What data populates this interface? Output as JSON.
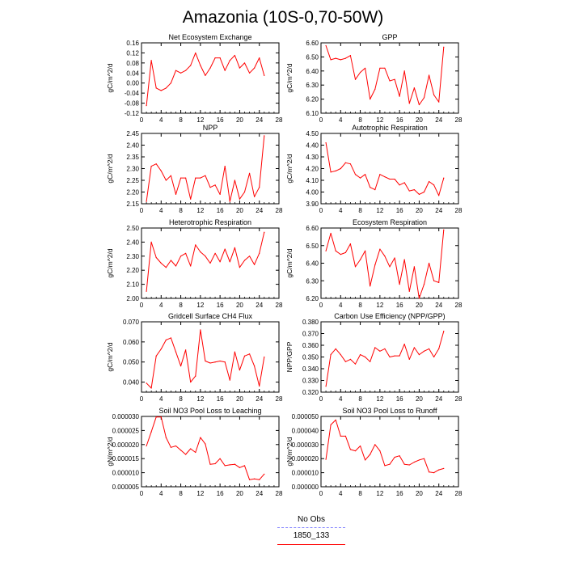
{
  "figure": {
    "title": "Amazonia (10S-0,70-50W)"
  },
  "legend": {
    "entries": [
      {
        "label": "No Obs",
        "color": "#8c8cff",
        "style": "dashed"
      },
      {
        "label": "1850_133",
        "color": "#ff0000",
        "style": "solid"
      }
    ]
  },
  "colors": {
    "series": "#ff0000",
    "axis": "#000000"
  },
  "chart_data": [
    {
      "type": "line",
      "title": "Net Ecosystem Exchange",
      "ylabel": "gC/m^2/d",
      "xlim": [
        0,
        28
      ],
      "ylim": [
        -0.12,
        0.16
      ],
      "xticks": [
        "0",
        "4",
        "8",
        "12",
        "16",
        "20",
        "24",
        "28"
      ],
      "yticks": [
        "-0.12",
        "-0.08",
        "-0.04",
        "0.00",
        "0.04",
        "0.08",
        "0.12",
        "0.16"
      ],
      "ytick_values": [
        -0.12,
        -0.08,
        -0.04,
        0.0,
        0.04,
        0.08,
        0.12,
        0.16
      ],
      "x": [
        1,
        2,
        3,
        4,
        5,
        6,
        7,
        8,
        9,
        10,
        11,
        12,
        13,
        14,
        15,
        16,
        17,
        18,
        19,
        20,
        21,
        22,
        23,
        24,
        25
      ],
      "series": [
        {
          "name": "1850_133",
          "values": [
            -0.09,
            0.09,
            -0.02,
            -0.03,
            -0.02,
            0.0,
            0.05,
            0.04,
            0.05,
            0.07,
            0.12,
            0.07,
            0.03,
            0.06,
            0.1,
            0.1,
            0.05,
            0.09,
            0.11,
            0.06,
            0.08,
            0.04,
            0.06,
            0.1,
            0.03
          ]
        }
      ]
    },
    {
      "type": "line",
      "title": "GPP",
      "ylabel": "gC/m^2/d",
      "xlim": [
        0,
        28
      ],
      "ylim": [
        6.1,
        6.6
      ],
      "xticks": [
        "0",
        "4",
        "8",
        "12",
        "16",
        "20",
        "24",
        "28"
      ],
      "yticks": [
        "6.10",
        "6.20",
        "6.30",
        "6.40",
        "6.50",
        "6.60"
      ],
      "ytick_values": [
        6.1,
        6.2,
        6.3,
        6.4,
        6.5,
        6.6
      ],
      "x": [
        1,
        2,
        3,
        4,
        5,
        6,
        7,
        8,
        9,
        10,
        11,
        12,
        13,
        14,
        15,
        16,
        17,
        18,
        19,
        20,
        21,
        22,
        23,
        24,
        25
      ],
      "series": [
        {
          "name": "1850_133",
          "values": [
            6.58,
            6.48,
            6.49,
            6.48,
            6.49,
            6.51,
            6.34,
            6.39,
            6.42,
            6.2,
            6.27,
            6.42,
            6.42,
            6.33,
            6.34,
            6.22,
            6.4,
            6.17,
            6.28,
            6.16,
            6.21,
            6.37,
            6.23,
            6.18,
            6.57
          ]
        }
      ]
    },
    {
      "type": "line",
      "title": "NPP",
      "ylabel": "gC/m^2/d",
      "xlim": [
        0,
        28
      ],
      "ylim": [
        2.15,
        2.45
      ],
      "xticks": [
        "0",
        "4",
        "8",
        "12",
        "16",
        "20",
        "24",
        "28"
      ],
      "yticks": [
        "2.15",
        "2.20",
        "2.25",
        "2.30",
        "2.35",
        "2.40",
        "2.45"
      ],
      "ytick_values": [
        2.15,
        2.2,
        2.25,
        2.3,
        2.35,
        2.4,
        2.45
      ],
      "x": [
        1,
        2,
        3,
        4,
        5,
        6,
        7,
        8,
        9,
        10,
        11,
        12,
        13,
        14,
        15,
        16,
        17,
        18,
        19,
        20,
        21,
        22,
        23,
        24,
        25
      ],
      "series": [
        {
          "name": "1850_133",
          "values": [
            2.16,
            2.31,
            2.32,
            2.29,
            2.25,
            2.27,
            2.19,
            2.26,
            2.26,
            2.17,
            2.26,
            2.26,
            2.27,
            2.22,
            2.23,
            2.19,
            2.31,
            2.16,
            2.25,
            2.17,
            2.2,
            2.28,
            2.18,
            2.22,
            2.44
          ]
        }
      ]
    },
    {
      "type": "line",
      "title": "Autotrophic Respiration",
      "ylabel": "gC/m^2/d",
      "xlim": [
        0,
        28
      ],
      "ylim": [
        3.9,
        4.5
      ],
      "xticks": [
        "0",
        "4",
        "8",
        "12",
        "16",
        "20",
        "24",
        "28"
      ],
      "yticks": [
        "3.90",
        "4.00",
        "4.10",
        "4.20",
        "4.30",
        "4.40",
        "4.50"
      ],
      "ytick_values": [
        3.9,
        4.0,
        4.1,
        4.2,
        4.3,
        4.4,
        4.5
      ],
      "x": [
        1,
        2,
        3,
        4,
        5,
        6,
        7,
        8,
        9,
        10,
        11,
        12,
        13,
        14,
        15,
        16,
        17,
        18,
        19,
        20,
        21,
        22,
        23,
        24,
        25
      ],
      "series": [
        {
          "name": "1850_133",
          "values": [
            4.42,
            4.17,
            4.18,
            4.2,
            4.25,
            4.24,
            4.15,
            4.12,
            4.15,
            4.04,
            4.02,
            4.15,
            4.13,
            4.11,
            4.11,
            4.06,
            4.08,
            4.01,
            4.02,
            3.98,
            4.0,
            4.09,
            4.06,
            3.97,
            4.12
          ]
        }
      ]
    },
    {
      "type": "line",
      "title": "Heterotrophic Respiration",
      "ylabel": "gC/m^2/d",
      "xlim": [
        0,
        28
      ],
      "ylim": [
        2.0,
        2.5
      ],
      "xticks": [
        "0",
        "4",
        "8",
        "12",
        "16",
        "20",
        "24",
        "28"
      ],
      "yticks": [
        "2.00",
        "2.10",
        "2.20",
        "2.30",
        "2.40",
        "2.50"
      ],
      "ytick_values": [
        2.0,
        2.1,
        2.2,
        2.3,
        2.4,
        2.5
      ],
      "x": [
        1,
        2,
        3,
        4,
        5,
        6,
        7,
        8,
        9,
        10,
        11,
        12,
        13,
        14,
        15,
        16,
        17,
        18,
        19,
        20,
        21,
        22,
        23,
        24,
        25
      ],
      "series": [
        {
          "name": "1850_133",
          "values": [
            2.05,
            2.4,
            2.29,
            2.25,
            2.22,
            2.27,
            2.23,
            2.3,
            2.32,
            2.23,
            2.38,
            2.33,
            2.3,
            2.25,
            2.32,
            2.26,
            2.35,
            2.26,
            2.36,
            2.22,
            2.27,
            2.3,
            2.24,
            2.32,
            2.47
          ]
        }
      ]
    },
    {
      "type": "line",
      "title": "Ecosystem Respiration",
      "ylabel": "gC/m^2/d",
      "xlim": [
        0,
        28
      ],
      "ylim": [
        6.2,
        6.6
      ],
      "xticks": [
        "0",
        "4",
        "8",
        "12",
        "16",
        "20",
        "24",
        "28"
      ],
      "yticks": [
        "6.20",
        "6.30",
        "6.40",
        "6.50",
        "6.60"
      ],
      "ytick_values": [
        6.2,
        6.3,
        6.4,
        6.5,
        6.6
      ],
      "x": [
        1,
        2,
        3,
        4,
        5,
        6,
        7,
        8,
        9,
        10,
        11,
        12,
        13,
        14,
        15,
        16,
        17,
        18,
        19,
        20,
        21,
        22,
        23,
        24,
        25
      ],
      "series": [
        {
          "name": "1850_133",
          "values": [
            6.47,
            6.57,
            6.47,
            6.45,
            6.46,
            6.51,
            6.38,
            6.42,
            6.47,
            6.27,
            6.39,
            6.48,
            6.44,
            6.38,
            6.43,
            6.28,
            6.42,
            6.24,
            6.38,
            6.2,
            6.28,
            6.4,
            6.3,
            6.29,
            6.59
          ]
        }
      ]
    },
    {
      "type": "line",
      "title": "Gridcell Surface CH4 Flux",
      "ylabel": "gC/m^2/d",
      "xlim": [
        0,
        28
      ],
      "ylim": [
        0.035,
        0.07
      ],
      "xticks": [
        "0",
        "4",
        "8",
        "12",
        "16",
        "20",
        "24",
        "28"
      ],
      "yticks": [
        "0.040",
        "0.050",
        "0.060",
        "0.070"
      ],
      "ytick_values": [
        0.04,
        0.05,
        0.06,
        0.07
      ],
      "x": [
        1,
        2,
        3,
        4,
        5,
        6,
        7,
        8,
        9,
        10,
        11,
        12,
        13,
        14,
        15,
        16,
        17,
        18,
        19,
        20,
        21,
        22,
        23,
        24,
        25
      ],
      "series": [
        {
          "name": "1850_133",
          "values": [
            0.0395,
            0.037,
            0.053,
            0.0565,
            0.061,
            0.062,
            0.055,
            0.048,
            0.056,
            0.04,
            0.043,
            0.066,
            0.0505,
            0.0495,
            0.05,
            0.0505,
            0.05,
            0.041,
            0.055,
            0.046,
            0.053,
            0.054,
            0.048,
            0.038,
            0.0525
          ]
        }
      ]
    },
    {
      "type": "line",
      "title": "Carbon Use Efficiency (NPP/GPP)",
      "ylabel": "NPP/GPP",
      "xlim": [
        0,
        28
      ],
      "ylim": [
        0.32,
        0.38
      ],
      "xticks": [
        "0",
        "4",
        "8",
        "12",
        "16",
        "20",
        "24",
        "28"
      ],
      "yticks": [
        "0.320",
        "0.330",
        "0.340",
        "0.350",
        "0.360",
        "0.370",
        "0.380"
      ],
      "ytick_values": [
        0.32,
        0.33,
        0.34,
        0.35,
        0.36,
        0.37,
        0.38
      ],
      "x": [
        1,
        2,
        3,
        4,
        5,
        6,
        7,
        8,
        9,
        10,
        11,
        12,
        13,
        14,
        15,
        16,
        17,
        18,
        19,
        20,
        21,
        22,
        23,
        24,
        25
      ],
      "series": [
        {
          "name": "1850_133",
          "values": [
            0.325,
            0.352,
            0.357,
            0.352,
            0.346,
            0.348,
            0.344,
            0.352,
            0.35,
            0.346,
            0.358,
            0.355,
            0.357,
            0.35,
            0.351,
            0.351,
            0.361,
            0.348,
            0.358,
            0.352,
            0.355,
            0.357,
            0.35,
            0.357,
            0.372
          ]
        }
      ]
    },
    {
      "type": "line",
      "title": "Soil NO3 Pool Loss to Leaching",
      "ylabel": "gN/m^2/d",
      "xlim": [
        0,
        28
      ],
      "ylim": [
        5e-06,
        3e-05
      ],
      "xticks": [
        "0",
        "4",
        "8",
        "12",
        "16",
        "20",
        "24",
        "28"
      ],
      "yticks": [
        "0.000005",
        "0.000010",
        "0.000015",
        "0.000020",
        "0.000025",
        "0.000030"
      ],
      "ytick_values": [
        5e-06,
        1e-05,
        1.5e-05,
        2e-05,
        2.5e-05,
        3e-05
      ],
      "x": [
        1,
        2,
        3,
        4,
        5,
        6,
        7,
        8,
        9,
        10,
        11,
        12,
        13,
        14,
        15,
        16,
        17,
        18,
        19,
        20,
        21,
        22,
        23,
        24,
        25
      ],
      "series": [
        {
          "name": "1850_133",
          "values": [
            1.95e-05,
            2.45e-05,
            2.98e-05,
            2.98e-05,
            2.25e-05,
            1.9e-05,
            1.95e-05,
            1.8e-05,
            1.65e-05,
            1.85e-05,
            1.72e-05,
            2.25e-05,
            2.02e-05,
            1.3e-05,
            1.32e-05,
            1.5e-05,
            1.25e-05,
            1.28e-05,
            1.3e-05,
            1.18e-05,
            1.25e-05,
            7.5e-06,
            7.8e-06,
            7.5e-06,
            9.5e-06
          ]
        }
      ]
    },
    {
      "type": "line",
      "title": "Soil NO3 Pool Loss to Runoff",
      "ylabel": "gN/m^2/d",
      "xlim": [
        0,
        28
      ],
      "ylim": [
        0.0,
        5e-05
      ],
      "xticks": [
        "0",
        "4",
        "8",
        "12",
        "16",
        "20",
        "24",
        "28"
      ],
      "yticks": [
        "0.000000",
        "0.000010",
        "0.000020",
        "0.000030",
        "0.000040",
        "0.000050"
      ],
      "ytick_values": [
        0.0,
        1e-05,
        2e-05,
        3e-05,
        4e-05,
        5e-05
      ],
      "x": [
        1,
        2,
        3,
        4,
        5,
        6,
        7,
        8,
        9,
        10,
        11,
        12,
        13,
        14,
        15,
        16,
        17,
        18,
        19,
        20,
        21,
        22,
        23,
        24,
        25
      ],
      "series": [
        {
          "name": "1850_133",
          "values": [
            1.95e-05,
            4.4e-05,
            4.75e-05,
            3.6e-05,
            3.6e-05,
            2.65e-05,
            2.55e-05,
            2.9e-05,
            1.9e-05,
            2.3e-05,
            3e-05,
            2.55e-05,
            1.5e-05,
            1.6e-05,
            2.1e-05,
            2.2e-05,
            1.6e-05,
            1.55e-05,
            1.75e-05,
            1.9e-05,
            2e-05,
            1.05e-05,
            1e-05,
            1.2e-05,
            1.3e-05
          ]
        }
      ]
    }
  ]
}
